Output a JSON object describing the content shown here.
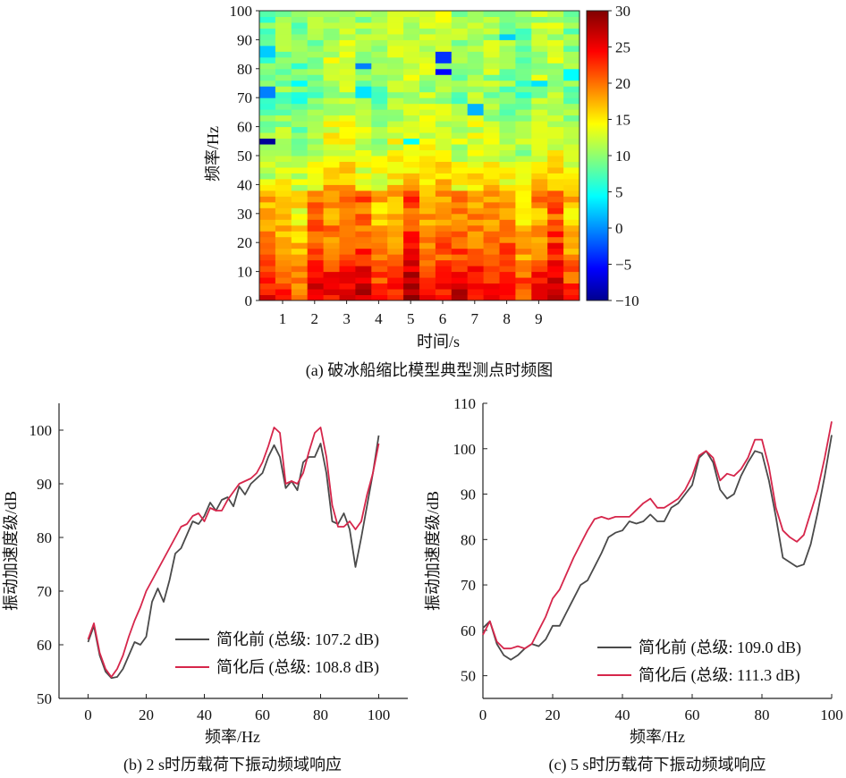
{
  "chart_data": [
    {
      "type": "heatmap",
      "caption": "(a) 破冰船缩比模型典型测点时频图",
      "xlabel": "时间/s",
      "ylabel": "频率/Hz",
      "x_ticks": [
        "1",
        "2",
        "3",
        "4",
        "5",
        "6",
        "7",
        "8",
        "9"
      ],
      "y_ticks": [
        "0",
        "10",
        "20",
        "30",
        "40",
        "50",
        "60",
        "70",
        "80",
        "90",
        "100"
      ],
      "ylim": [
        0,
        100
      ],
      "colorbar_ticks": [
        "30",
        "25",
        "20",
        "15",
        "10",
        "5",
        "0",
        "−5",
        "−10"
      ],
      "colorbar_range": [
        -10,
        30
      ],
      "colormap": "jet",
      "time_frames": 20,
      "freq_bins": 50,
      "spectrum_profile_db": [
        [
          0,
          24
        ],
        [
          5,
          23
        ],
        [
          10,
          22
        ],
        [
          15,
          20
        ],
        [
          20,
          19
        ],
        [
          25,
          18
        ],
        [
          30,
          17
        ],
        [
          35,
          18
        ],
        [
          40,
          15
        ],
        [
          50,
          13
        ],
        [
          60,
          12
        ],
        [
          70,
          10
        ],
        [
          80,
          11
        ],
        [
          90,
          11
        ],
        [
          100,
          11
        ]
      ],
      "low_spots": [
        {
          "t": 0,
          "f": 55,
          "v": -9
        },
        {
          "t": 0,
          "f": 72,
          "v": 0
        },
        {
          "t": 0,
          "f": 86,
          "v": 3
        },
        {
          "t": 2,
          "f": 75,
          "v": 5
        },
        {
          "t": 6,
          "f": 81,
          "v": 0
        },
        {
          "t": 6,
          "f": 72,
          "v": 4
        },
        {
          "t": 11,
          "f": 84,
          "v": -3
        },
        {
          "t": 11,
          "f": 79,
          "v": -5
        },
        {
          "t": 13,
          "f": 66,
          "v": 2
        },
        {
          "t": 15,
          "f": 91,
          "v": 3
        },
        {
          "t": 9,
          "f": 55,
          "v": 5
        },
        {
          "t": 19,
          "f": 78,
          "v": 5
        },
        {
          "t": 17,
          "f": 75,
          "v": 4
        }
      ]
    },
    {
      "type": "line",
      "caption": "(b) 2 s时历载荷下振动频域响应",
      "xlabel": "频率/Hz",
      "ylabel": "振动加速度级/dB",
      "xlim": [
        -10,
        110
      ],
      "ylim": [
        50,
        105
      ],
      "x_ticks": [
        "0",
        "20",
        "40",
        "60",
        "80",
        "100"
      ],
      "y_ticks": [
        "50",
        "60",
        "70",
        "80",
        "90",
        "100"
      ],
      "series": [
        {
          "name": "简化前 (总级: 107.2 dB)",
          "color": "#4a4a4a",
          "x": [
            0,
            2,
            4,
            6,
            8,
            10,
            12,
            14,
            16,
            18,
            20,
            22,
            24,
            26,
            28,
            30,
            32,
            34,
            36,
            38,
            40,
            42,
            44,
            46,
            48,
            50,
            52,
            54,
            56,
            58,
            60,
            62,
            64,
            66,
            68,
            70,
            72,
            74,
            76,
            78,
            80,
            82,
            84,
            86,
            88,
            90,
            92,
            94,
            96,
            98,
            100
          ],
          "y": [
            60.5,
            63.5,
            58,
            55,
            53.8,
            54,
            55.5,
            58,
            60.5,
            60,
            61.5,
            68,
            70.5,
            68,
            72,
            77,
            78,
            80.5,
            83,
            82.5,
            84,
            86.5,
            85,
            87,
            87.5,
            85.8,
            89.5,
            88,
            90,
            91,
            92,
            95,
            97.2,
            95,
            89.2,
            90.5,
            88.8,
            94,
            95,
            95,
            97.5,
            92,
            83,
            82.5,
            84.5,
            81.5,
            74.5,
            80,
            86,
            92,
            99
          ]
        },
        {
          "name": "简化后 (总级: 108.8 dB)",
          "color": "#d6264b",
          "x": [
            0,
            2,
            4,
            6,
            8,
            10,
            12,
            14,
            16,
            18,
            20,
            22,
            24,
            26,
            28,
            30,
            32,
            34,
            36,
            38,
            40,
            42,
            44,
            46,
            48,
            50,
            52,
            54,
            56,
            58,
            60,
            62,
            64,
            66,
            68,
            70,
            72,
            74,
            76,
            78,
            80,
            82,
            84,
            86,
            88,
            90,
            92,
            94,
            96,
            98,
            100
          ],
          "y": [
            61,
            64,
            58.5,
            55.5,
            54,
            55.5,
            58,
            61.5,
            64.5,
            67,
            70,
            72,
            74,
            76,
            78,
            80,
            82,
            82.5,
            84,
            84.5,
            83,
            85.5,
            85,
            85,
            87,
            88.5,
            90,
            90.5,
            91,
            92,
            94,
            97,
            100.5,
            99.5,
            90,
            90.5,
            90,
            92,
            96,
            99.5,
            100.5,
            95,
            86,
            82,
            82,
            83,
            81.5,
            83,
            88,
            92,
            97.5
          ]
        }
      ]
    },
    {
      "type": "line",
      "caption": "(c) 5 s时历载荷下振动频域响应",
      "xlabel": "频率/Hz",
      "ylabel": "振动加速度级/dB",
      "xlim": [
        0,
        100
      ],
      "ylim": [
        45,
        110
      ],
      "x_ticks": [
        "0",
        "20",
        "40",
        "60",
        "80",
        "100"
      ],
      "y_ticks": [
        "50",
        "60",
        "70",
        "80",
        "90",
        "100",
        "110"
      ],
      "series": [
        {
          "name": "简化前 (总级: 109.0 dB)",
          "color": "#4a4a4a",
          "x": [
            0,
            2,
            4,
            6,
            8,
            10,
            12,
            14,
            16,
            18,
            20,
            22,
            24,
            26,
            28,
            30,
            32,
            34,
            36,
            38,
            40,
            42,
            44,
            46,
            48,
            50,
            52,
            54,
            56,
            58,
            60,
            62,
            64,
            66,
            68,
            70,
            72,
            74,
            76,
            78,
            80,
            82,
            84,
            86,
            88,
            90,
            92,
            94,
            96,
            98,
            100
          ],
          "y": [
            60.5,
            62,
            57,
            54.5,
            53.5,
            54.5,
            56,
            57,
            56.5,
            58,
            61,
            61,
            64,
            67,
            70,
            71,
            74,
            77,
            80.5,
            81.5,
            82,
            84,
            83.5,
            84,
            85.5,
            84,
            84,
            87,
            88,
            90,
            92,
            98,
            99.5,
            97,
            91,
            89,
            90,
            94,
            97,
            99.5,
            99,
            93,
            85,
            76,
            75,
            74,
            74.5,
            79,
            86,
            94,
            103
          ]
        },
        {
          "name": "简化后 (总级: 111.3 dB)",
          "color": "#d6264b",
          "x": [
            0,
            2,
            4,
            6,
            8,
            10,
            12,
            14,
            16,
            18,
            20,
            22,
            24,
            26,
            28,
            30,
            32,
            34,
            36,
            38,
            40,
            42,
            44,
            46,
            48,
            50,
            52,
            54,
            56,
            58,
            60,
            62,
            64,
            66,
            68,
            70,
            72,
            74,
            76,
            78,
            80,
            82,
            84,
            86,
            88,
            90,
            92,
            94,
            96,
            98,
            100
          ],
          "y": [
            59,
            62,
            57.5,
            56,
            56,
            56.5,
            56,
            57,
            60,
            63,
            67,
            69,
            72.5,
            76,
            79,
            82,
            84.5,
            85,
            84.5,
            85,
            85,
            85,
            86.5,
            88,
            89,
            87,
            87,
            88,
            89,
            91,
            94,
            98.5,
            99.5,
            98,
            93,
            94.5,
            94,
            95.5,
            98,
            102,
            102,
            96,
            87,
            82,
            80.5,
            79.5,
            81,
            86,
            91,
            98,
            106
          ]
        }
      ]
    }
  ]
}
